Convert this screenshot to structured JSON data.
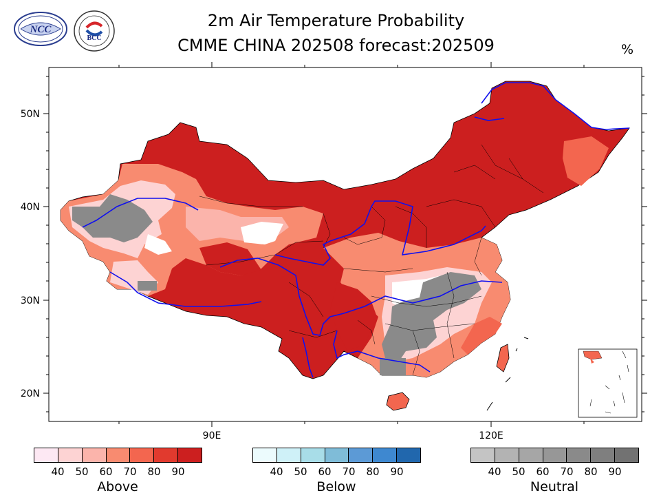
{
  "title_line1": "2m Air Temperature Probability",
  "title_line2": "CMME CHINA 202508 forecast:202509",
  "unit": "%",
  "logos": [
    {
      "name": "ncc-logo",
      "text": "NCC"
    },
    {
      "name": "bcc-logo",
      "text": "BCC"
    }
  ],
  "axis": {
    "y_labels": [
      "50N",
      "40N",
      "30N",
      "20N"
    ],
    "x_labels": [
      "90E",
      "120E"
    ]
  },
  "colorbars": [
    {
      "name": "Above",
      "ticks": [
        "40",
        "50",
        "60",
        "70",
        "80",
        "90"
      ],
      "colors": [
        "#fde8f3",
        "#fdd3d3",
        "#fbb4ab",
        "#f88b70",
        "#f3664f",
        "#e13a2e",
        "#cc1f1f"
      ]
    },
    {
      "name": "Below",
      "ticks": [
        "40",
        "50",
        "60",
        "70",
        "80",
        "90"
      ],
      "colors": [
        "#ecfbfd",
        "#cff1f8",
        "#a8dde8",
        "#7fbcd8",
        "#5c9ad6",
        "#3e88d0",
        "#2167ad"
      ]
    },
    {
      "name": "Neutral",
      "ticks": [
        "40",
        "50",
        "60",
        "70",
        "80",
        "90"
      ],
      "colors": [
        "#c4c4c4",
        "#b3b3b3",
        "#a6a6a6",
        "#979797",
        "#8a8a8a",
        "#7f7f7f",
        "#727272"
      ]
    }
  ]
}
